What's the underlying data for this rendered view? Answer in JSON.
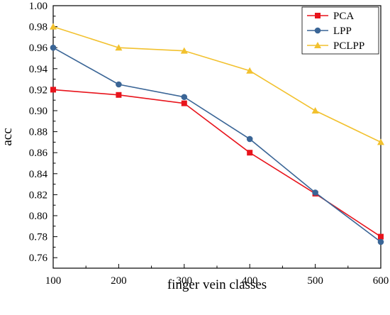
{
  "chart_data": {
    "type": "line",
    "title": "",
    "xlabel": "finger vein classes",
    "ylabel": "acc",
    "x": [
      100,
      200,
      300,
      400,
      500,
      600
    ],
    "xlim": [
      100,
      600
    ],
    "ylim": [
      0.75,
      1.0
    ],
    "xticks": [
      "100",
      "200",
      "300",
      "400",
      "500",
      "600"
    ],
    "yticks": [
      "0.76",
      "0.78",
      "0.80",
      "0.82",
      "0.84",
      "0.86",
      "0.88",
      "0.90",
      "0.92",
      "0.94",
      "0.96",
      "0.98",
      "1.00"
    ],
    "ytick_values": [
      0.76,
      0.78,
      0.8,
      0.82,
      0.84,
      0.86,
      0.88,
      0.9,
      0.92,
      0.94,
      0.96,
      0.98,
      1.0
    ],
    "grid": false,
    "legend_position": "top-right",
    "series": [
      {
        "name": "PCA",
        "color": "#e8141c",
        "marker": "square",
        "values": [
          0.92,
          0.915,
          0.907,
          0.86,
          0.821,
          0.78
        ]
      },
      {
        "name": "LPP",
        "color": "#3a6596",
        "marker": "circle",
        "values": [
          0.96,
          0.925,
          0.913,
          0.873,
          0.822,
          0.775
        ]
      },
      {
        "name": "PCLPP",
        "color": "#f2c12e",
        "marker": "triangle",
        "values": [
          0.98,
          0.96,
          0.957,
          0.938,
          0.9,
          0.87
        ]
      }
    ]
  }
}
